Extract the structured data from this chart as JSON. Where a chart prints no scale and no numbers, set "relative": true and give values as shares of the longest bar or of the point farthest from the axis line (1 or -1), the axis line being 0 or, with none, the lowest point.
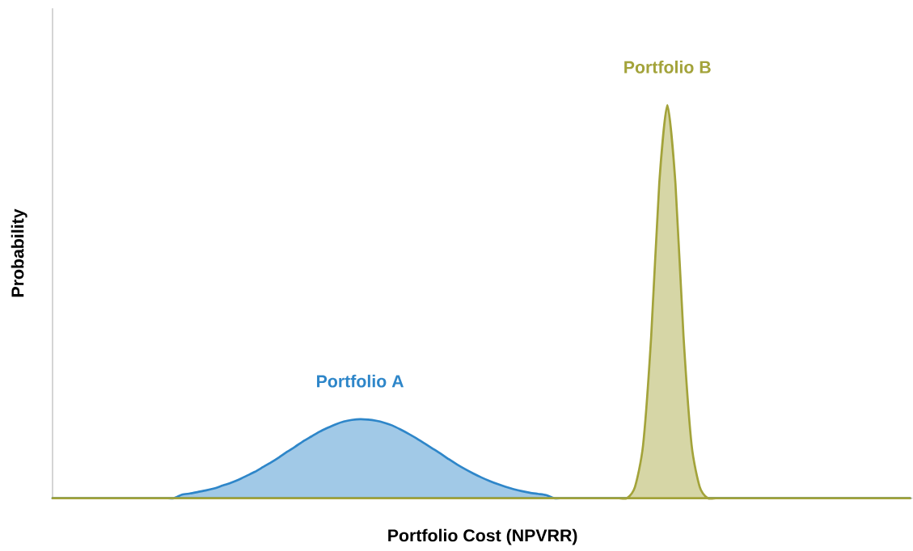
{
  "chart_data": {
    "type": "area",
    "relative": true,
    "xlabel": "Portfolio Cost (NPVRR)",
    "ylabel": "Probability",
    "categories": [
      null,
      null,
      null,
      null,
      null,
      null,
      null,
      null,
      null,
      null,
      null,
      null,
      null,
      null,
      null,
      null,
      null,
      null,
      null,
      null,
      null,
      null,
      null,
      null,
      null,
      null,
      null,
      null,
      null,
      null,
      null,
      null,
      null,
      null,
      null,
      null,
      null,
      null,
      null,
      null,
      null,
      null,
      null,
      null,
      null,
      null,
      null,
      null,
      null,
      null,
      null,
      null,
      null,
      null,
      null,
      null,
      null,
      null,
      null,
      null,
      null,
      null,
      null,
      null,
      null,
      null,
      null,
      null,
      null,
      null,
      null,
      null,
      null,
      null,
      null,
      null,
      null,
      null,
      null,
      null,
      null,
      null,
      null,
      null,
      null,
      null,
      null,
      null,
      null,
      null,
      null,
      null,
      null,
      null,
      null,
      null,
      null,
      null,
      null,
      null,
      null,
      null,
      null,
      null,
      null,
      null,
      null
    ],
    "series": [
      {
        "name": "Portfolio A",
        "color": "#2e86c9",
        "values": [
          0,
          0,
          0,
          0,
          0,
          0,
          0,
          0,
          0,
          0,
          0,
          0,
          0,
          0,
          0,
          0,
          0.009,
          0.012,
          0.016,
          0.02,
          0.025,
          0.032,
          0.039,
          0.047,
          0.057,
          0.067,
          0.079,
          0.091,
          0.104,
          0.118,
          0.131,
          0.145,
          0.157,
          0.169,
          0.179,
          0.188,
          0.195,
          0.199,
          0.201,
          0.2,
          0.197,
          0.192,
          0.185,
          0.175,
          0.164,
          0.152,
          0.139,
          0.126,
          0.113,
          0.099,
          0.086,
          0.074,
          0.063,
          0.053,
          0.044,
          0.036,
          0.029,
          0.023,
          0.018,
          0.014,
          0.011,
          0.008,
          0,
          0,
          0,
          0,
          0,
          0,
          0,
          0,
          0,
          0,
          0,
          0,
          0,
          0,
          0,
          0,
          0,
          0,
          0,
          0,
          0,
          0,
          0,
          0,
          0,
          0,
          0,
          0,
          0,
          0,
          0,
          0,
          0,
          0,
          0,
          0,
          0,
          0,
          0,
          0,
          0,
          0,
          0,
          0,
          0
        ]
      },
      {
        "name": "Portfolio B",
        "color": "#a3a33a",
        "values": [
          0,
          0,
          0,
          0,
          0,
          0,
          0,
          0,
          0,
          0,
          0,
          0,
          0,
          0,
          0,
          0,
          0,
          0,
          0,
          0,
          0,
          0,
          0,
          0,
          0,
          0,
          0,
          0,
          0,
          0,
          0,
          0,
          0,
          0,
          0,
          0,
          0,
          0,
          0,
          0,
          0,
          0,
          0,
          0,
          0,
          0,
          0,
          0,
          0,
          0,
          0,
          0,
          0,
          0,
          0,
          0,
          0,
          0,
          0,
          0,
          0,
          0,
          0,
          0,
          0,
          0,
          0,
          0,
          0,
          0,
          0,
          0,
          0.029,
          0.135,
          0.411,
          0.801,
          1,
          0.801,
          0.411,
          0.135,
          0.029,
          0,
          0,
          0,
          0,
          0,
          0,
          0,
          0,
          0,
          0,
          0,
          0,
          0,
          0,
          0,
          0,
          0,
          0,
          0,
          0,
          0,
          0,
          0,
          0,
          0,
          0
        ]
      }
    ]
  }
}
